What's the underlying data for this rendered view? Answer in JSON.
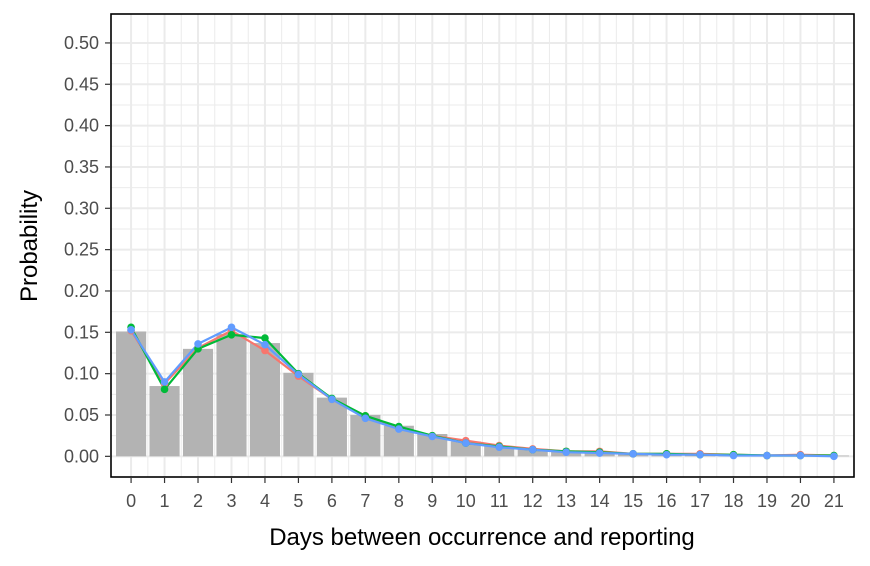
{
  "chart_data": {
    "type": "bar",
    "xlabel": "Days between occurrence and reporting",
    "ylabel": "Probability",
    "categories": [
      "0",
      "1",
      "2",
      "3",
      "4",
      "5",
      "6",
      "7",
      "8",
      "9",
      "10",
      "11",
      "12",
      "13",
      "14",
      "15",
      "16",
      "17",
      "18",
      "19",
      "20",
      "21"
    ],
    "ylim": [
      -0.025,
      0.535
    ],
    "yticks": [
      "0.00",
      "0.05",
      "0.10",
      "0.15",
      "0.20",
      "0.25",
      "0.30",
      "0.35",
      "0.40",
      "0.45",
      "0.50"
    ],
    "grid": true,
    "legend": "none",
    "bars": {
      "color": "#b3b3b3",
      "values": [
        0.151,
        0.085,
        0.13,
        0.148,
        0.137,
        0.101,
        0.071,
        0.05,
        0.037,
        0.027,
        0.018,
        0.012,
        0.009,
        0.007,
        0.005,
        0.004,
        0.003,
        0.002,
        0.002,
        0.001,
        0.001,
        0.001
      ]
    },
    "series": [
      {
        "color": "#f8766d",
        "values": [
          0.152,
          0.088,
          0.131,
          0.152,
          0.128,
          0.097,
          0.069,
          0.049,
          0.034,
          0.025,
          0.019,
          0.013,
          0.009,
          0.006,
          0.006,
          0.003,
          0.003,
          0.003,
          0.002,
          0.001,
          0.002,
          0.001
        ]
      },
      {
        "color": "#00ba38",
        "values": [
          0.156,
          0.081,
          0.13,
          0.147,
          0.143,
          0.1,
          0.07,
          0.049,
          0.036,
          0.025,
          0.016,
          0.012,
          0.008,
          0.006,
          0.005,
          0.003,
          0.003,
          0.002,
          0.002,
          0.001,
          0.001,
          0.001
        ]
      },
      {
        "color": "#619cff",
        "values": [
          0.153,
          0.09,
          0.136,
          0.156,
          0.135,
          0.099,
          0.069,
          0.046,
          0.033,
          0.024,
          0.016,
          0.011,
          0.008,
          0.005,
          0.004,
          0.003,
          0.002,
          0.002,
          0.001,
          0.001,
          0.001,
          0.0
        ]
      }
    ]
  }
}
